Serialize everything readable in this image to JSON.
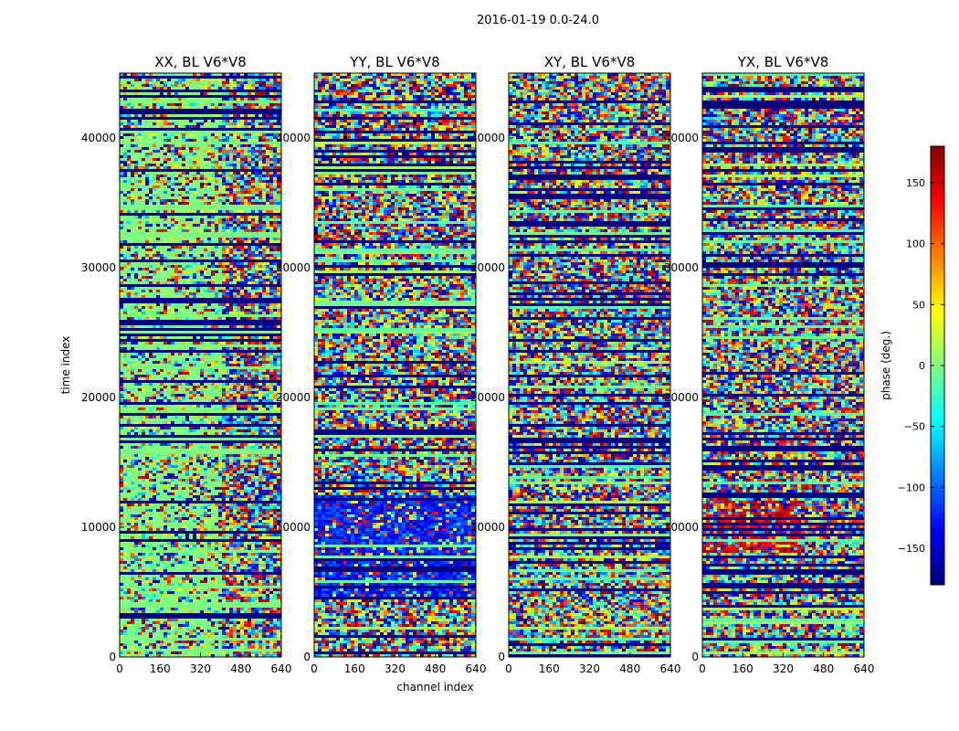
{
  "figure_title": "2016-01-19 0.0-24.0",
  "chart_data": [
    {
      "type": "heatmap",
      "title": "XX, BL V6*V8",
      "xlabel": "",
      "ylabel": "time index",
      "xlim": [
        0,
        640
      ],
      "ylim": [
        0,
        45000
      ],
      "xticks": [
        "0",
        "160",
        "320",
        "480",
        "640"
      ],
      "yticks": [
        "0",
        "10000",
        "20000",
        "30000",
        "40000"
      ],
      "value_range": [
        -180,
        180
      ],
      "colormap": "jet"
    },
    {
      "type": "heatmap",
      "title": "YY, BL V6*V8",
      "xlabel": "channel index",
      "ylabel": "",
      "xlim": [
        0,
        640
      ],
      "ylim": [
        0,
        45000
      ],
      "xticks": [
        "0",
        "160",
        "320",
        "480",
        "640"
      ],
      "yticks": [
        "0",
        "10000",
        "20000",
        "30000",
        "40000"
      ],
      "value_range": [
        -180,
        180
      ],
      "colormap": "jet"
    },
    {
      "type": "heatmap",
      "title": "XY, BL V6*V8",
      "xlabel": "",
      "ylabel": "",
      "xlim": [
        0,
        640
      ],
      "ylim": [
        0,
        45000
      ],
      "xticks": [
        "0",
        "160",
        "320",
        "480",
        "640"
      ],
      "yticks": [
        "0",
        "10000",
        "20000",
        "30000",
        "40000"
      ],
      "value_range": [
        -180,
        180
      ],
      "colormap": "jet"
    },
    {
      "type": "heatmap",
      "title": "YX, BL V6*V8",
      "xlabel": "",
      "ylabel": "",
      "xlim": [
        0,
        640
      ],
      "ylim": [
        0,
        45000
      ],
      "xticks": [
        "0",
        "160",
        "320",
        "480",
        "640"
      ],
      "yticks": [
        "0",
        "10000",
        "20000",
        "30000",
        "40000"
      ],
      "value_range": [
        -180,
        180
      ],
      "colormap": "jet"
    }
  ],
  "colorbar": {
    "label": "phase (deg.)",
    "range": [
      -180,
      180
    ],
    "ticks": [
      "150",
      "100",
      "50",
      "0",
      "−50",
      "−100",
      "−150"
    ],
    "tick_values": [
      150,
      100,
      50,
      0,
      -50,
      -100,
      -150
    ],
    "colormap": "jet",
    "colors": [
      "#00007f",
      "#0000ff",
      "#007fff",
      "#00ffff",
      "#7fff7f",
      "#ffff00",
      "#ff7f00",
      "#ff0000",
      "#7f0000"
    ]
  }
}
